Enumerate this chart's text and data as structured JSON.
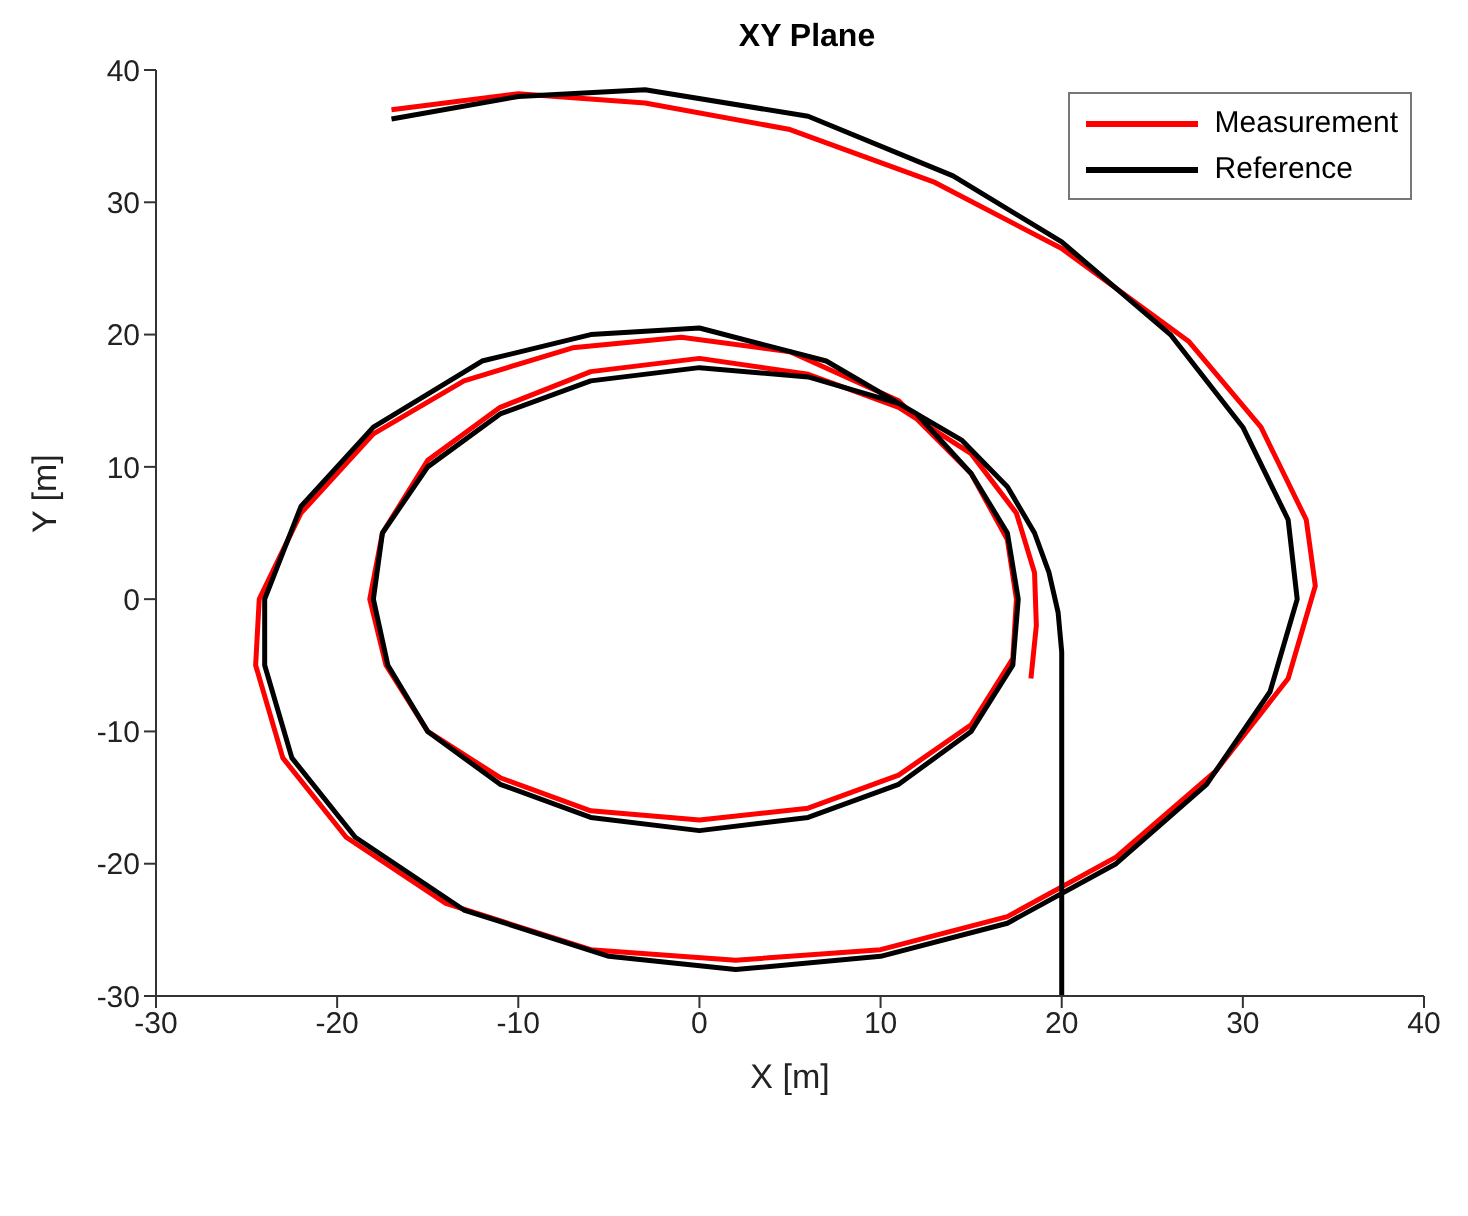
{
  "chart_data": {
    "type": "line",
    "title": "XY Plane",
    "xlabel": "X [m]",
    "ylabel": "Y [m]",
    "xlim": [
      -30,
      40
    ],
    "xticks": [
      -30,
      -20,
      -10,
      0,
      10,
      20,
      30,
      40
    ],
    "ylim": [
      -30,
      40
    ],
    "yticks": [
      -30,
      -20,
      -10,
      0,
      10,
      20,
      30,
      40
    ],
    "grid": false,
    "legend": "top right",
    "line_style": "solid",
    "series": [
      {
        "name": "Measurement",
        "color": "#ff0000",
        "x": [
          18.3,
          18.6,
          18.5,
          17.5,
          15,
          11,
          6,
          0,
          -6,
          -11,
          -15,
          -17.5,
          -18.2,
          -17.3,
          -15,
          -11,
          -6,
          0,
          6,
          11,
          15,
          17.3,
          17.5,
          17,
          15,
          11,
          5,
          -1,
          -7,
          -13,
          -18,
          -22,
          -24.3,
          -24.5,
          -23,
          -19.5,
          -14,
          -6,
          2,
          10,
          17,
          23,
          28.5,
          32.5,
          34,
          33.5,
          31,
          27,
          20,
          13,
          5,
          -3,
          -10,
          -17
        ],
        "values": [
          -6,
          -2,
          2,
          6.5,
          11,
          14.5,
          17,
          18.2,
          17.2,
          14.5,
          10.5,
          5,
          0,
          -5,
          -10,
          -13.5,
          -16,
          -16.7,
          -15.8,
          -13.3,
          -9.5,
          -4.5,
          0,
          4.5,
          9.5,
          15,
          18.7,
          19.8,
          19,
          16.5,
          12.5,
          6.5,
          0,
          -5,
          -12,
          -18,
          -23,
          -26.5,
          -27.3,
          -26.5,
          -24,
          -19.5,
          -13,
          -6,
          1,
          6,
          13,
          19.5,
          26.5,
          31.5,
          35.5,
          37.5,
          38.2,
          37
        ]
      },
      {
        "name": "Reference",
        "color": "#000000",
        "x": [
          20,
          20,
          20,
          20,
          19.8,
          19.3,
          18.5,
          17,
          14.5,
          11,
          6,
          0,
          -6,
          -11,
          -15,
          -17.5,
          -18,
          -17.2,
          -15,
          -11,
          -6,
          0,
          6,
          11,
          15,
          17.3,
          17.6,
          17,
          15,
          12,
          7,
          0,
          -6,
          -12,
          -18,
          -22,
          -24,
          -24,
          -22.5,
          -19,
          -13,
          -5,
          2,
          10,
          17,
          23,
          28,
          31.5,
          33,
          32.5,
          30,
          26,
          20,
          14,
          6,
          -3,
          -10,
          -17
        ],
        "values": [
          -30,
          -20,
          -10,
          -4,
          -1,
          2,
          5,
          8.5,
          12,
          14.8,
          16.8,
          17.5,
          16.5,
          14,
          10,
          5,
          0,
          -5,
          -10,
          -14,
          -16.5,
          -17.5,
          -16.5,
          -14,
          -10,
          -5,
          0,
          5,
          9.5,
          14,
          18,
          20.5,
          20,
          18,
          13,
          7,
          0,
          -5,
          -12,
          -18,
          -23.5,
          -27,
          -28,
          -27,
          -24.5,
          -20,
          -14,
          -7,
          0,
          6,
          13,
          20,
          27,
          32,
          36.5,
          38.5,
          38,
          36.3
        ]
      }
    ]
  }
}
